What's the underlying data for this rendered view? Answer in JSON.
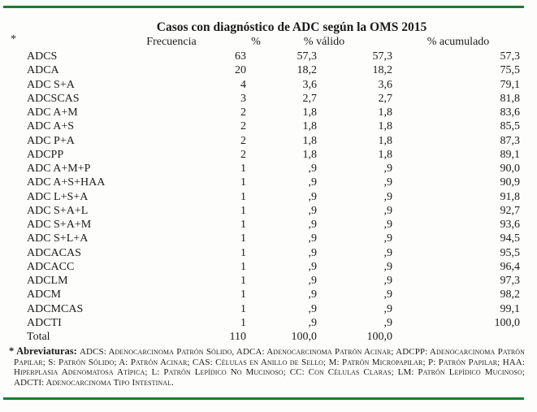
{
  "title": "Casos con diagnóstico de ADC según la OMS 2015",
  "colors": {
    "rule_green": "#1e7b2e",
    "text": "#1b1b1b",
    "background": "#fdfdfc"
  },
  "table": {
    "marker": "*",
    "headers": [
      "Frecuencia",
      "%",
      "% válido",
      "% acumulado"
    ],
    "rows": [
      [
        "ADCS",
        "63",
        "57,3",
        "57,3",
        "57,3"
      ],
      [
        "ADCA",
        "20",
        "18,2",
        "18,2",
        "75,5"
      ],
      [
        "ADC S+A",
        "4",
        "3,6",
        "3,6",
        "79,1"
      ],
      [
        "ADCSCAS",
        "3",
        "2,7",
        "2,7",
        "81,8"
      ],
      [
        "ADC A+M",
        "2",
        "1,8",
        "1,8",
        "83,6"
      ],
      [
        "ADC A+S",
        "2",
        "1,8",
        "1,8",
        "85,5"
      ],
      [
        "ADC P+A",
        "2",
        "1,8",
        "1,8",
        "87,3"
      ],
      [
        "ADCPP",
        "2",
        "1,8",
        "1,8",
        "89,1"
      ],
      [
        "ADC A+M+P",
        "1",
        ",9",
        ",9",
        "90,0"
      ],
      [
        "ADC A+S+HAA",
        "1",
        ",9",
        ",9",
        "90,9"
      ],
      [
        "ADC L+S+A",
        "1",
        ",9",
        ",9",
        "91,8"
      ],
      [
        "ADC S+A+L",
        "1",
        ",9",
        ",9",
        "92,7"
      ],
      [
        "ADC S+A+M",
        "1",
        ",9",
        ",9",
        "93,6"
      ],
      [
        "ADC S+L+A",
        "1",
        ",9",
        ",9",
        "94,5"
      ],
      [
        "ADCACAS",
        "1",
        ",9",
        ",9",
        "95,5"
      ],
      [
        "ADCACC",
        "1",
        ",9",
        ",9",
        "96,4"
      ],
      [
        "ADCLM",
        "1",
        ",9",
        ",9",
        "97,3"
      ],
      [
        "ADCM",
        "1",
        ",9",
        ",9",
        "98,2"
      ],
      [
        "ADCMCAS",
        "1",
        ",9",
        ",9",
        "99,1"
      ],
      [
        "ADCTI",
        "1",
        ",9",
        ",9",
        "100,0"
      ],
      [
        "Total",
        "110",
        "100,0",
        "100,0",
        ""
      ]
    ]
  },
  "footnote": {
    "label": "* Abreviaturas:",
    "text": "ADCS: Adenocarcinoma Patrón Sólido, ADCA: Adenocarcinoma Patrón Acinar; ADCPP: Adenocarcinoma Patrón Papilar; S: Patrón Sólido; A: Patrón Acinar; CAS: Células en Anillo de Sello; M: Patrón Micropapilar; P: Patrón Papilar; HAA: Hiperplasia Adenomatosa Atípica; L: Patrón Lepídico No Mucinoso; CC: Con Células Claras; LM: Patrón Lepídico Mucinoso; ADCTI: Adenocarcinoma Tipo Intestinal."
  }
}
